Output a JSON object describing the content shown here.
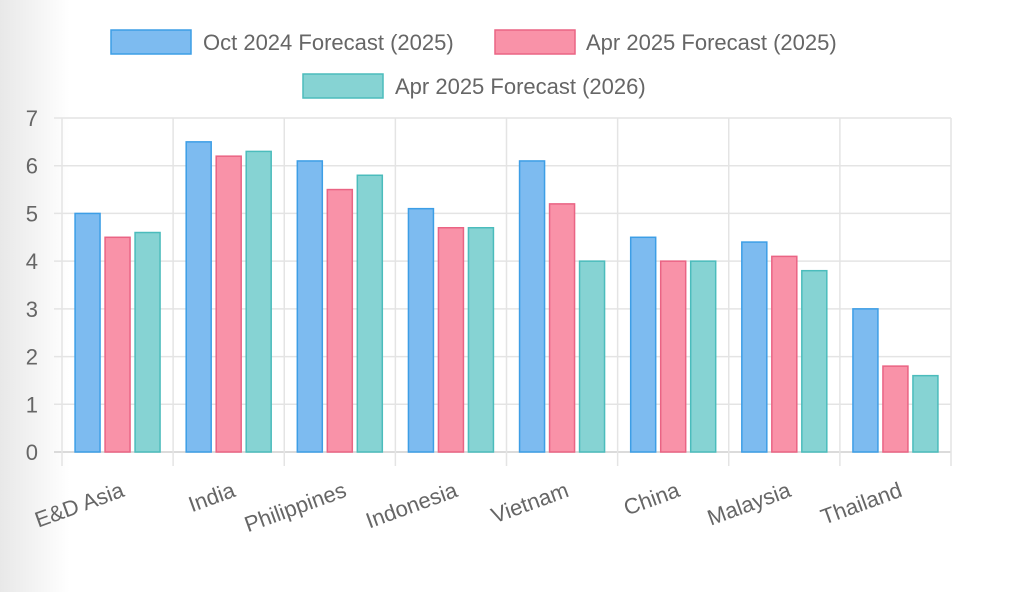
{
  "chart_data": {
    "type": "bar",
    "categories": [
      "E&D Asia",
      "India",
      "Philippines",
      "Indonesia",
      "Vietnam",
      "China",
      "Malaysia",
      "Thailand"
    ],
    "series": [
      {
        "name": "Oct 2024 Forecast (2025)",
        "values": [
          5.0,
          6.5,
          6.1,
          5.1,
          6.1,
          4.5,
          4.4,
          3.0
        ],
        "fill": "#7dbbf0",
        "stroke": "#3d9ee6"
      },
      {
        "name": "Apr 2025 Forecast (2025)",
        "values": [
          4.5,
          6.2,
          5.5,
          4.7,
          5.2,
          4.0,
          4.1,
          1.8
        ],
        "fill": "#f992a8",
        "stroke": "#ea6484"
      },
      {
        "name": "Apr 2025 Forecast (2026)",
        "values": [
          4.6,
          6.3,
          5.8,
          4.7,
          4.0,
          4.0,
          3.8,
          1.6
        ],
        "fill": "#86d3d3",
        "stroke": "#4bbcbc"
      }
    ],
    "ylim": [
      0,
      7
    ],
    "yticks": [
      0,
      1,
      2,
      3,
      4,
      5,
      6,
      7
    ],
    "grid": true,
    "legend_position": "top",
    "xlabel": "",
    "ylabel": ""
  }
}
